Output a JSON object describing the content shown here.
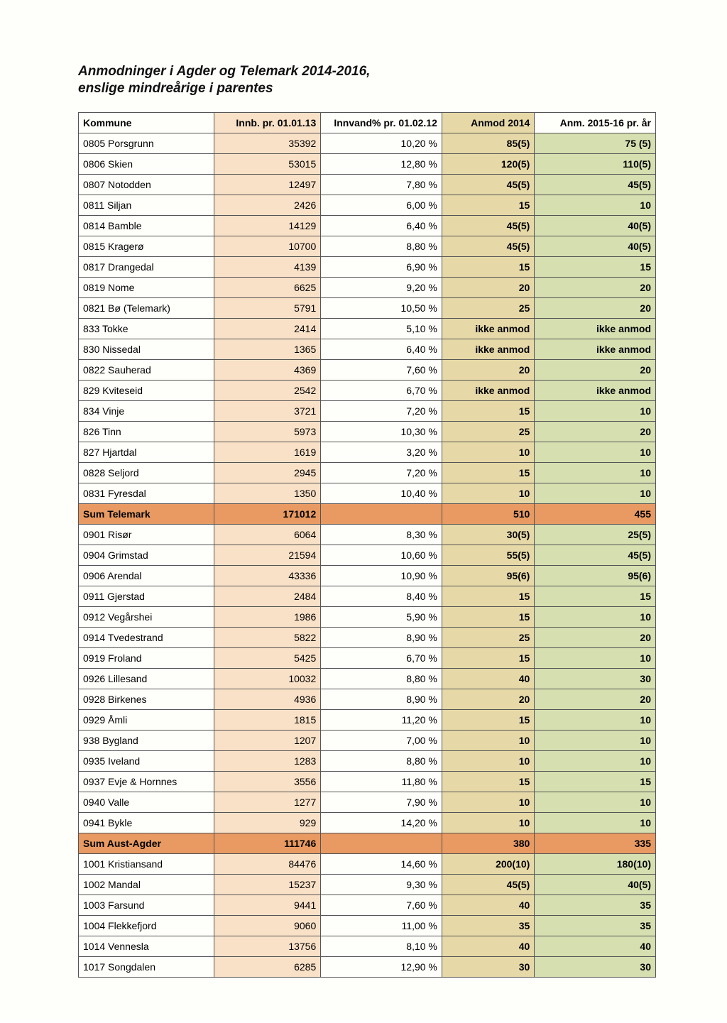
{
  "title": "Anmodninger i Agder og Telemark 2014-2016,",
  "subtitle": "enslige mindreårige i parentes",
  "colors": {
    "page_bg": "#fefefb",
    "border": "#555555",
    "innb_bg": "#f9e1c7",
    "anmod_bg": "#e6d9a7",
    "anm_bg": "#d5dfb0",
    "sum_bg": "#e89a62"
  },
  "columns": [
    "Kommune",
    "Innb. pr. 01.01.13",
    "Innvand% pr. 01.02.12",
    "Anmod 2014",
    "Anm. 2015-16 pr. år"
  ],
  "rows": [
    {
      "k": "0805 Porsgrunn",
      "innb": "35392",
      "pct": "10,20 %",
      "anmod": "85(5)",
      "anm": "75 (5)"
    },
    {
      "k": "0806 Skien",
      "innb": "53015",
      "pct": "12,80 %",
      "anmod": "120(5)",
      "anm": "110(5)"
    },
    {
      "k": "0807 Notodden",
      "innb": "12497",
      "pct": "7,80 %",
      "anmod": "45(5)",
      "anm": "45(5)"
    },
    {
      "k": "0811 Siljan",
      "innb": "2426",
      "pct": "6,00 %",
      "anmod": "15",
      "anm": "10"
    },
    {
      "k": "0814 Bamble",
      "innb": "14129",
      "pct": "6,40 %",
      "anmod": "45(5)",
      "anm": "40(5)"
    },
    {
      "k": "0815 Kragerø",
      "innb": "10700",
      "pct": "8,80 %",
      "anmod": "45(5)",
      "anm": "40(5)"
    },
    {
      "k": "0817 Drangedal",
      "innb": "4139",
      "pct": "6,90 %",
      "anmod": "15",
      "anm": "15"
    },
    {
      "k": "0819 Nome",
      "innb": "6625",
      "pct": "9,20 %",
      "anmod": "20",
      "anm": "20"
    },
    {
      "k": "0821 Bø (Telemark)",
      "innb": "5791",
      "pct": "10,50 %",
      "anmod": "25",
      "anm": "20"
    },
    {
      "k": "833 Tokke",
      "innb": "2414",
      "pct": "5,10 %",
      "anmod": "ikke anmod",
      "anm": "ikke anmod"
    },
    {
      "k": "830 Nissedal",
      "innb": "1365",
      "pct": "6,40 %",
      "anmod": "ikke anmod",
      "anm": "ikke anmod"
    },
    {
      "k": "0822 Sauherad",
      "innb": "4369",
      "pct": "7,60 %",
      "anmod": "20",
      "anm": "20"
    },
    {
      "k": "829 Kviteseid",
      "innb": "2542",
      "pct": "6,70 %",
      "anmod": "ikke anmod",
      "anm": "ikke anmod"
    },
    {
      "k": "834 Vinje",
      "innb": "3721",
      "pct": "7,20 %",
      "anmod": "15",
      "anm": "10"
    },
    {
      "k": "826 Tinn",
      "innb": "5973",
      "pct": "10,30 %",
      "anmod": "25",
      "anm": "20"
    },
    {
      "k": "827 Hjartdal",
      "innb": "1619",
      "pct": "3,20 %",
      "anmod": "10",
      "anm": "10"
    },
    {
      "k": "0828 Seljord",
      "innb": "2945",
      "pct": "7,20 %",
      "anmod": "15",
      "anm": "10"
    },
    {
      "k": "0831 Fyresdal",
      "innb": "1350",
      "pct": "10,40 %",
      "anmod": "10",
      "anm": "10"
    },
    {
      "k": "Sum Telemark",
      "innb": "171012",
      "pct": "",
      "anmod": "510",
      "anm": "455",
      "sum": true
    },
    {
      "k": "0901 Risør",
      "innb": "6064",
      "pct": "8,30 %",
      "anmod": "30(5)",
      "anm": "25(5)"
    },
    {
      "k": "0904 Grimstad",
      "innb": "21594",
      "pct": "10,60 %",
      "anmod": "55(5)",
      "anm": "45(5)"
    },
    {
      "k": "0906 Arendal",
      "innb": "43336",
      "pct": "10,90 %",
      "anmod": "95(6)",
      "anm": "95(6)"
    },
    {
      "k": "0911 Gjerstad",
      "innb": "2484",
      "pct": "8,40 %",
      "anmod": "15",
      "anm": "15"
    },
    {
      "k": "0912 Vegårshei",
      "innb": "1986",
      "pct": "5,90 %",
      "anmod": "15",
      "anm": "10"
    },
    {
      "k": "0914 Tvedestrand",
      "innb": "5822",
      "pct": "8,90 %",
      "anmod": "25",
      "anm": "20"
    },
    {
      "k": "0919 Froland",
      "innb": "5425",
      "pct": "6,70 %",
      "anmod": "15",
      "anm": "10"
    },
    {
      "k": "0926 Lillesand",
      "innb": "10032",
      "pct": "8,80 %",
      "anmod": "40",
      "anm": "30"
    },
    {
      "k": "0928 Birkenes",
      "innb": "4936",
      "pct": "8,90 %",
      "anmod": "20",
      "anm": "20"
    },
    {
      "k": "0929 Åmli",
      "innb": "1815",
      "pct": "11,20 %",
      "anmod": "15",
      "anm": "10"
    },
    {
      "k": "938 Bygland",
      "innb": "1207",
      "pct": "7,00 %",
      "anmod": "10",
      "anm": "10"
    },
    {
      "k": "0935 Iveland",
      "innb": "1283",
      "pct": "8,80 %",
      "anmod": "10",
      "anm": "10"
    },
    {
      "k": "0937 Evje & Hornnes",
      "innb": "3556",
      "pct": "11,80 %",
      "anmod": "15",
      "anm": "15"
    },
    {
      "k": "0940 Valle",
      "innb": "1277",
      "pct": "7,90 %",
      "anmod": "10",
      "anm": "10"
    },
    {
      "k": "0941 Bykle",
      "innb": "929",
      "pct": "14,20 %",
      "anmod": "10",
      "anm": "10"
    },
    {
      "k": "Sum Aust-Agder",
      "innb": "111746",
      "pct": "",
      "anmod": "380",
      "anm": "335",
      "sum": true
    },
    {
      "k": "1001 Kristiansand",
      "innb": "84476",
      "pct": "14,60 %",
      "anmod": "200(10)",
      "anm": "180(10)"
    },
    {
      "k": "1002 Mandal",
      "innb": "15237",
      "pct": "9,30 %",
      "anmod": "45(5)",
      "anm": "40(5)"
    },
    {
      "k": "1003 Farsund",
      "innb": "9441",
      "pct": "7,60 %",
      "anmod": "40",
      "anm": "35"
    },
    {
      "k": "1004 Flekkefjord",
      "innb": "9060",
      "pct": "11,00 %",
      "anmod": "35",
      "anm": "35"
    },
    {
      "k": "1014 Vennesla",
      "innb": "13756",
      "pct": "8,10 %",
      "anmod": "40",
      "anm": "40"
    },
    {
      "k": "1017 Songdalen",
      "innb": "6285",
      "pct": "12,90 %",
      "anmod": "30",
      "anm": "30"
    }
  ]
}
